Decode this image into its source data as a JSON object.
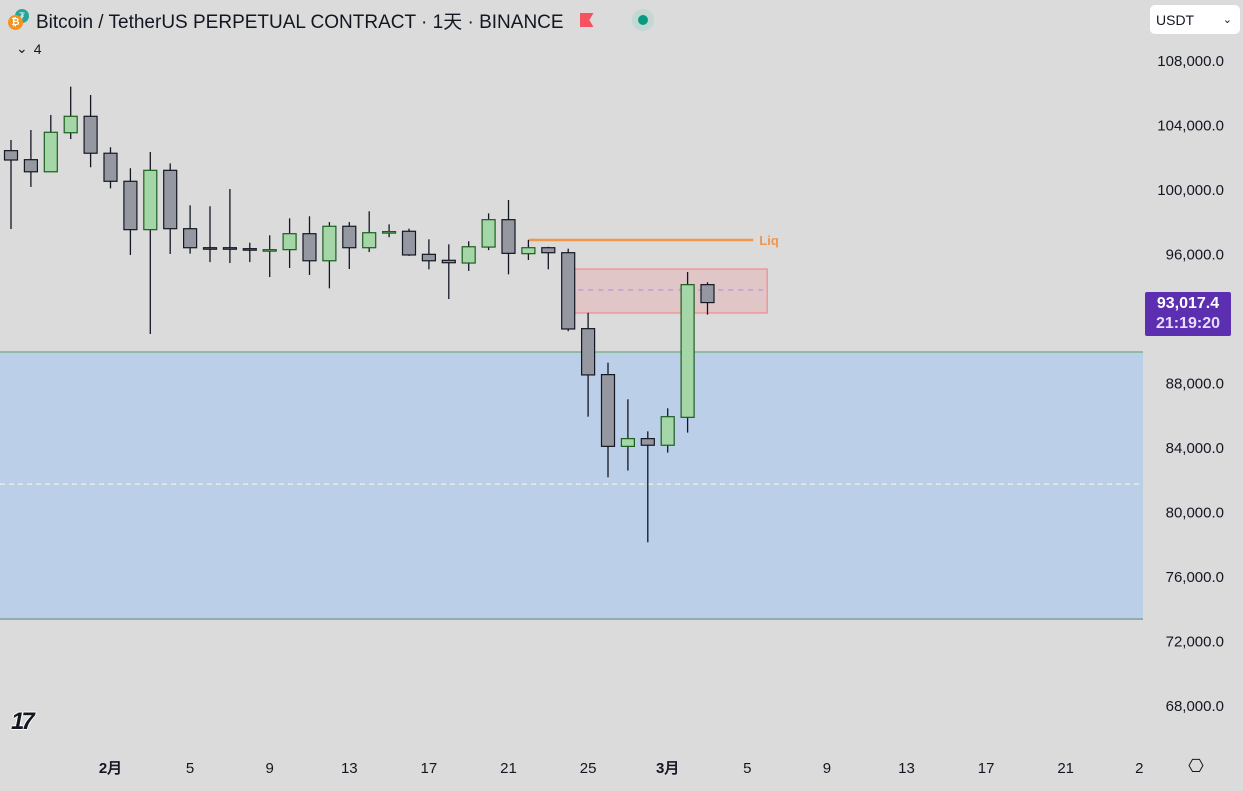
{
  "header": {
    "symbol_title": "Bitcoin / TetherUS PERPETUAL CONTRACT · 1天 · BINANCE",
    "indicator_toggle": "4",
    "currency_select": "USDT",
    "current_price": "93,017.4",
    "countdown": "21:19:20"
  },
  "logo_text": "TV",
  "colors": {
    "bull": "#a5d6a7",
    "bull_border": "#1b5e20",
    "bear": "#9598a1",
    "bear_border": "#131722",
    "zone": "#bccfe8",
    "liq": "#f0974a",
    "supply": "#f77c80",
    "price_tag": "#5b2fb0"
  },
  "chart_data": {
    "type": "candlestick",
    "title": "Bitcoin / TetherUS PERPETUAL CONTRACT · 1天 · BINANCE",
    "ylim": [
      66600,
      110000
    ],
    "y_ticks": [
      {
        "value": 108000,
        "label": "108,000.0"
      },
      {
        "value": 104000,
        "label": "104,000.0"
      },
      {
        "value": 100000,
        "label": "100,000.0"
      },
      {
        "value": 96000,
        "label": "96,000.0"
      },
      {
        "value": 88000,
        "label": "88,000.0"
      },
      {
        "value": 84000,
        "label": "84,000.0"
      },
      {
        "value": 80000,
        "label": "80,000.0"
      },
      {
        "value": 76000,
        "label": "76,000.0"
      },
      {
        "value": 72000,
        "label": "72,000.0"
      },
      {
        "value": 68000,
        "label": "68,000.0"
      }
    ],
    "x_ticks_day_offset_from_first": [
      {
        "day": 5,
        "label": "2月",
        "bold": true
      },
      {
        "day": 9,
        "label": "5"
      },
      {
        "day": 13,
        "label": "9"
      },
      {
        "day": 17,
        "label": "13"
      },
      {
        "day": 21,
        "label": "17"
      },
      {
        "day": 25,
        "label": "21"
      },
      {
        "day": 29,
        "label": "25"
      },
      {
        "day": 33,
        "label": "3月",
        "bold": true
      },
      {
        "day": 37,
        "label": "5"
      },
      {
        "day": 41,
        "label": "9"
      },
      {
        "day": 45,
        "label": "13"
      },
      {
        "day": 49,
        "label": "17"
      },
      {
        "day": 53,
        "label": "21"
      },
      {
        "day": 56.7,
        "label": "2"
      }
    ],
    "candles": [
      {
        "d": "01-27",
        "o": 102440,
        "h": 103100,
        "l": 97580,
        "c": 101860
      },
      {
        "d": "01-28",
        "o": 101880,
        "h": 103720,
        "l": 100190,
        "c": 101130
      },
      {
        "d": "01-29",
        "o": 101130,
        "h": 104650,
        "l": 101130,
        "c": 103580
      },
      {
        "d": "01-30",
        "o": 103550,
        "h": 106410,
        "l": 103160,
        "c": 104570
      },
      {
        "d": "01-31",
        "o": 104570,
        "h": 105890,
        "l": 101410,
        "c": 102280
      },
      {
        "d": "02-01",
        "o": 102280,
        "h": 102650,
        "l": 100100,
        "c": 100540
      },
      {
        "d": "02-02",
        "o": 100540,
        "h": 101350,
        "l": 95970,
        "c": 97540
      },
      {
        "d": "02-03",
        "o": 97540,
        "h": 102360,
        "l": 91070,
        "c": 101220
      },
      {
        "d": "02-04",
        "o": 101220,
        "h": 101650,
        "l": 96030,
        "c": 97600
      },
      {
        "d": "02-05",
        "o": 97600,
        "h": 99050,
        "l": 96050,
        "c": 96420
      },
      {
        "d": "02-06",
        "o": 96420,
        "h": 98990,
        "l": 95530,
        "c": 96400
      },
      {
        "d": "02-07",
        "o": 96420,
        "h": 100060,
        "l": 95470,
        "c": 96400
      },
      {
        "d": "02-08",
        "o": 96360,
        "h": 96730,
        "l": 95530,
        "c": 96320
      },
      {
        "d": "02-09",
        "o": 96290,
        "h": 97190,
        "l": 94600,
        "c": 96300
      },
      {
        "d": "02-10",
        "o": 96300,
        "h": 98240,
        "l": 95160,
        "c": 97290
      },
      {
        "d": "02-11",
        "o": 97290,
        "h": 98370,
        "l": 94730,
        "c": 95610
      },
      {
        "d": "02-12",
        "o": 95610,
        "h": 98010,
        "l": 93900,
        "c": 97750
      },
      {
        "d": "02-13",
        "o": 97750,
        "h": 98010,
        "l": 95100,
        "c": 96420
      },
      {
        "d": "02-14",
        "o": 96420,
        "h": 98680,
        "l": 96150,
        "c": 97350
      },
      {
        "d": "02-15",
        "o": 97380,
        "h": 97870,
        "l": 97070,
        "c": 97420
      },
      {
        "d": "02-16",
        "o": 97440,
        "h": 97600,
        "l": 95910,
        "c": 95970
      },
      {
        "d": "02-17",
        "o": 96010,
        "h": 96940,
        "l": 95080,
        "c": 95610
      },
      {
        "d": "02-18",
        "o": 95640,
        "h": 96630,
        "l": 93240,
        "c": 95490
      },
      {
        "d": "02-19",
        "o": 95470,
        "h": 96820,
        "l": 94980,
        "c": 96480
      },
      {
        "d": "02-20",
        "o": 96460,
        "h": 98550,
        "l": 96270,
        "c": 98160
      },
      {
        "d": "02-21",
        "o": 98160,
        "h": 99380,
        "l": 94770,
        "c": 96070
      },
      {
        "d": "02-22",
        "o": 96050,
        "h": 96900,
        "l": 95660,
        "c": 96420
      },
      {
        "d": "02-23",
        "o": 96420,
        "h": 96480,
        "l": 95080,
        "c": 96110
      },
      {
        "d": "02-24",
        "o": 96110,
        "h": 96360,
        "l": 91240,
        "c": 91380
      },
      {
        "d": "02-25",
        "o": 91400,
        "h": 92390,
        "l": 85940,
        "c": 88530
      },
      {
        "d": "02-26",
        "o": 88550,
        "h": 89290,
        "l": 82180,
        "c": 84100
      },
      {
        "d": "02-27",
        "o": 84100,
        "h": 87020,
        "l": 82600,
        "c": 84580
      },
      {
        "d": "02-28",
        "o": 84580,
        "h": 85030,
        "l": 78150,
        "c": 84170
      },
      {
        "d": "03-01",
        "o": 84170,
        "h": 86460,
        "l": 83710,
        "c": 85940
      },
      {
        "d": "03-02",
        "o": 85900,
        "h": 94910,
        "l": 84950,
        "c": 94130
      },
      {
        "d": "03-03",
        "o": 94130,
        "h": 94280,
        "l": 92270,
        "c": 93017.4
      }
    ],
    "overlays": {
      "demand_zone": {
        "top": 89950,
        "bottom": 73390,
        "mid_dashed": 81760
      },
      "supply_box": {
        "top": 95100,
        "bottom": 92370,
        "mid_dashed": 93800,
        "start_day": 28,
        "end_day": 38
      },
      "liq_line": {
        "price": 96900,
        "start_day": 26,
        "end_day": 37.3,
        "label": "Liq"
      }
    }
  }
}
